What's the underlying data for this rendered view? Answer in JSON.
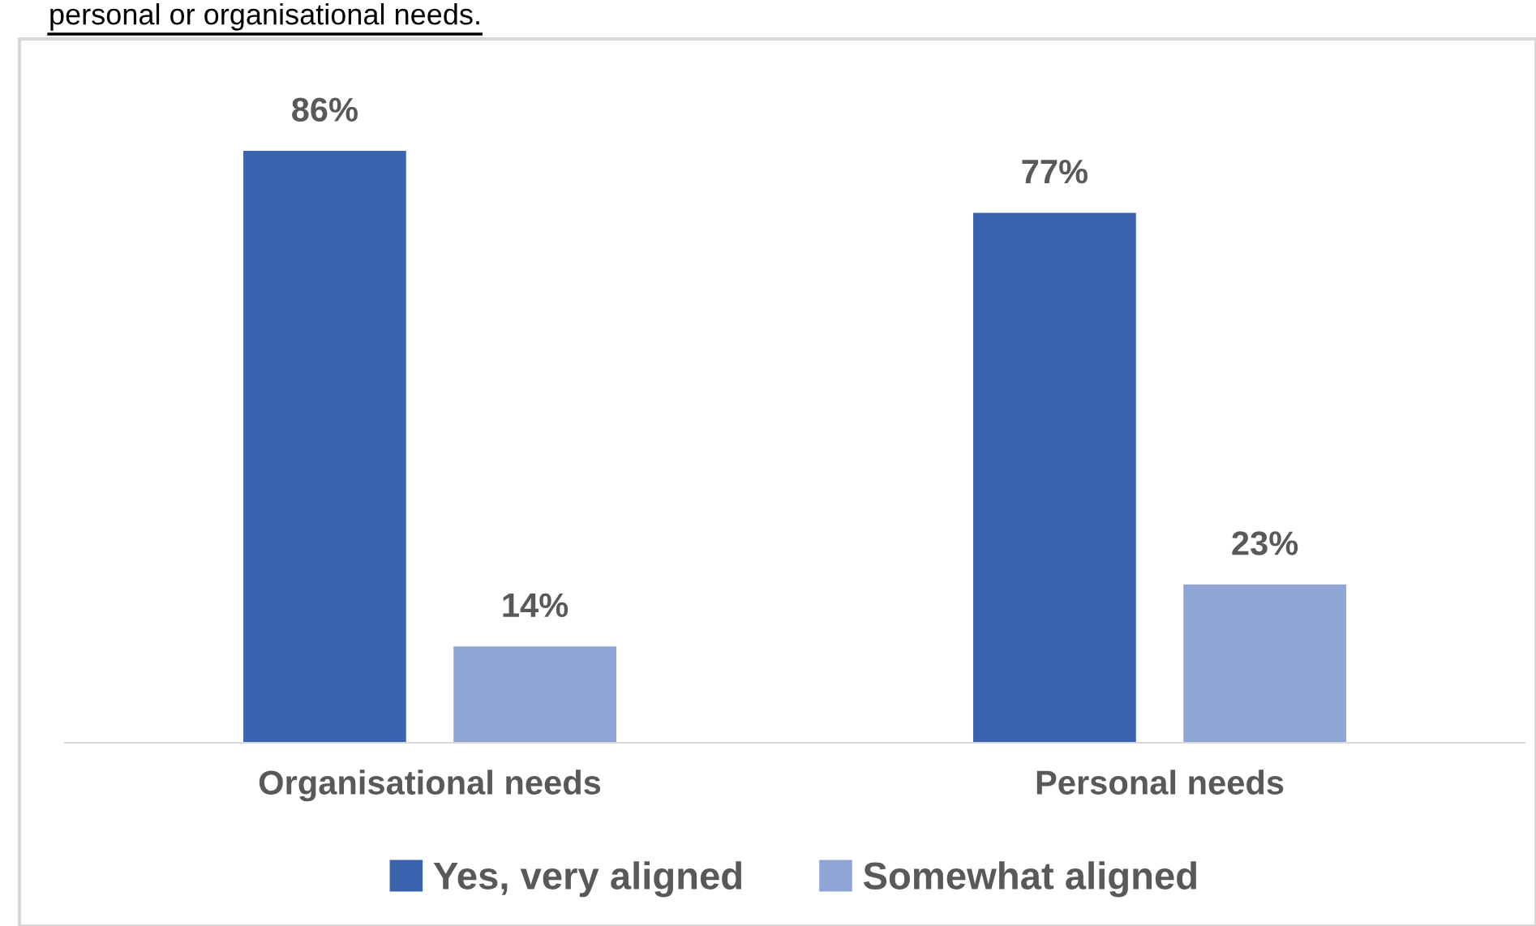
{
  "chart_data": {
    "type": "bar",
    "categories": [
      "Organisational needs",
      "Personal needs"
    ],
    "series": [
      {
        "name": "Yes, very aligned",
        "color": "#3a63ad",
        "values": [
          86,
          77
        ],
        "value_labels": [
          "86%",
          "77%"
        ]
      },
      {
        "name": "Somewhat aligned",
        "color": "#8fa5d5",
        "values": [
          14,
          23
        ],
        "value_labels": [
          "14%",
          "23%"
        ]
      }
    ],
    "legend": "bottom",
    "grid": false,
    "annotations": [
      "personal or organisational needs."
    ]
  }
}
